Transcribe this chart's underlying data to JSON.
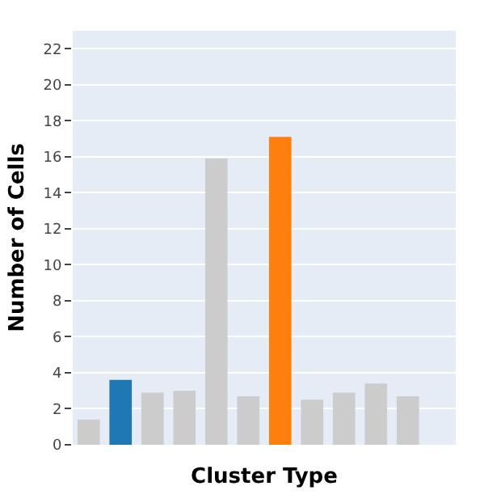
{
  "chart_data": {
    "type": "bar",
    "xlabel": "Cluster Type",
    "ylabel": "Number of Cells",
    "categories": [
      null,
      null,
      null,
      null,
      null,
      null,
      null,
      null,
      null,
      null,
      null,
      null
    ],
    "values": [
      1.4,
      3.6,
      2.9,
      3.0,
      15.9,
      2.7,
      17.1,
      2.5,
      2.9,
      3.4,
      2.7,
      null
    ],
    "colors": [
      "#cccccc",
      "#1f77b4",
      "#cccccc",
      "#cccccc",
      "#cccccc",
      "#cccccc",
      "#ff7f0e",
      "#cccccc",
      "#cccccc",
      "#cccccc",
      "#cccccc",
      "#cccccc"
    ],
    "ylim": [
      0,
      23
    ],
    "yticks": [
      0,
      2,
      4,
      6,
      8,
      10,
      12,
      14,
      16,
      18,
      20,
      22
    ],
    "grid": "y",
    "tick_labels": "y"
  }
}
